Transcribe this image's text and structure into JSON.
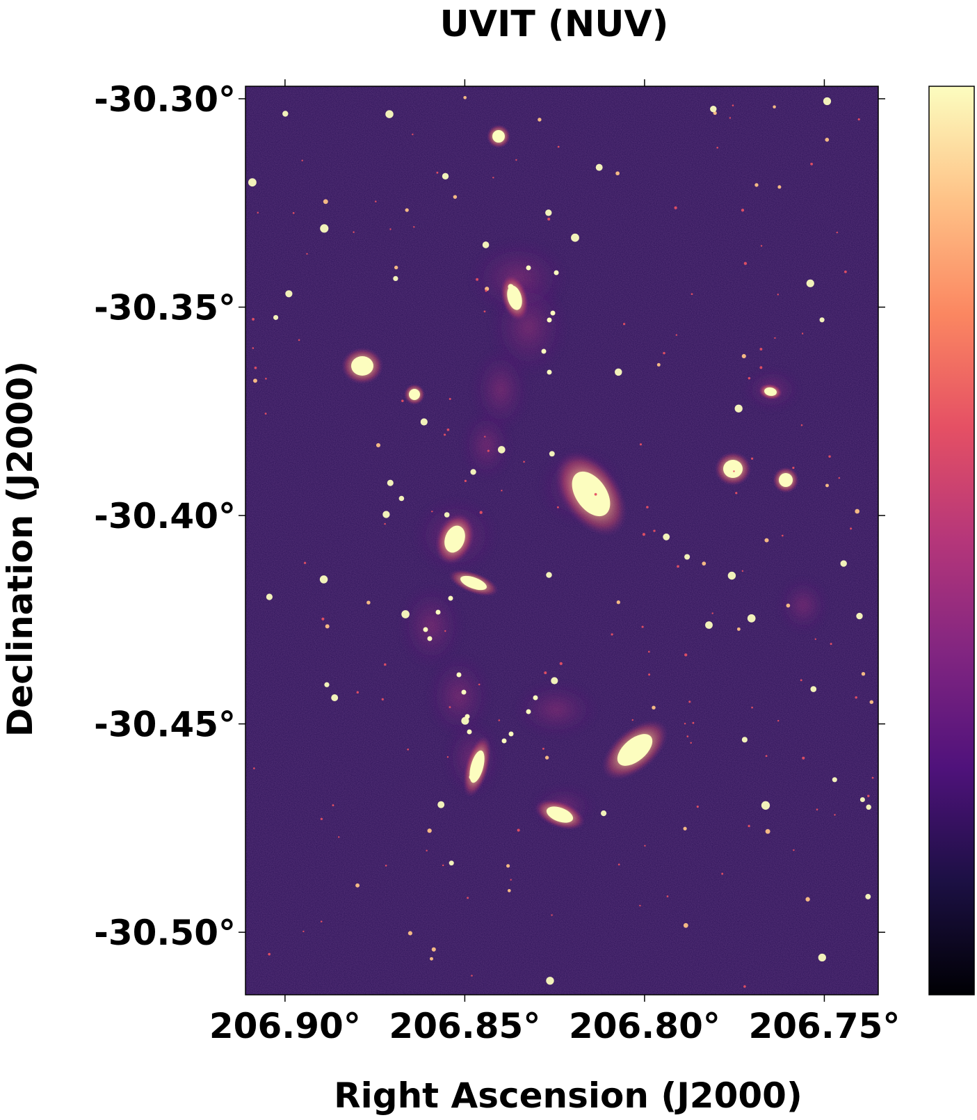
{
  "figure": {
    "title": "UVIT (NUV)",
    "xlabel": "Right Ascension (J2000)",
    "ylabel": "Declination (J2000)",
    "colormap": "magma",
    "colorbar_colors": [
      "#000004",
      "#1c1044",
      "#4f127b",
      "#812581",
      "#b5367a",
      "#e55064",
      "#fb8761",
      "#fec287",
      "#fcfdbf"
    ],
    "background_color": "#2b1156"
  },
  "axes": {
    "x": {
      "ticks": [
        {
          "value": 206.9,
          "label": "206.90°"
        },
        {
          "value": 206.85,
          "label": "206.85°"
        },
        {
          "value": 206.8,
          "label": "206.80°"
        },
        {
          "value": 206.75,
          "label": "206.75°"
        }
      ],
      "range": [
        206.911,
        206.735
      ],
      "reversed": true
    },
    "y": {
      "ticks": [
        {
          "value": -30.3,
          "label": "-30.30°"
        },
        {
          "value": -30.35,
          "label": "-30.35°"
        },
        {
          "value": -30.4,
          "label": "-30.40°"
        },
        {
          "value": -30.45,
          "label": "-30.45°"
        },
        {
          "value": -30.5,
          "label": "-30.50°"
        }
      ],
      "range": [
        -30.297,
        -30.515
      ]
    }
  }
}
